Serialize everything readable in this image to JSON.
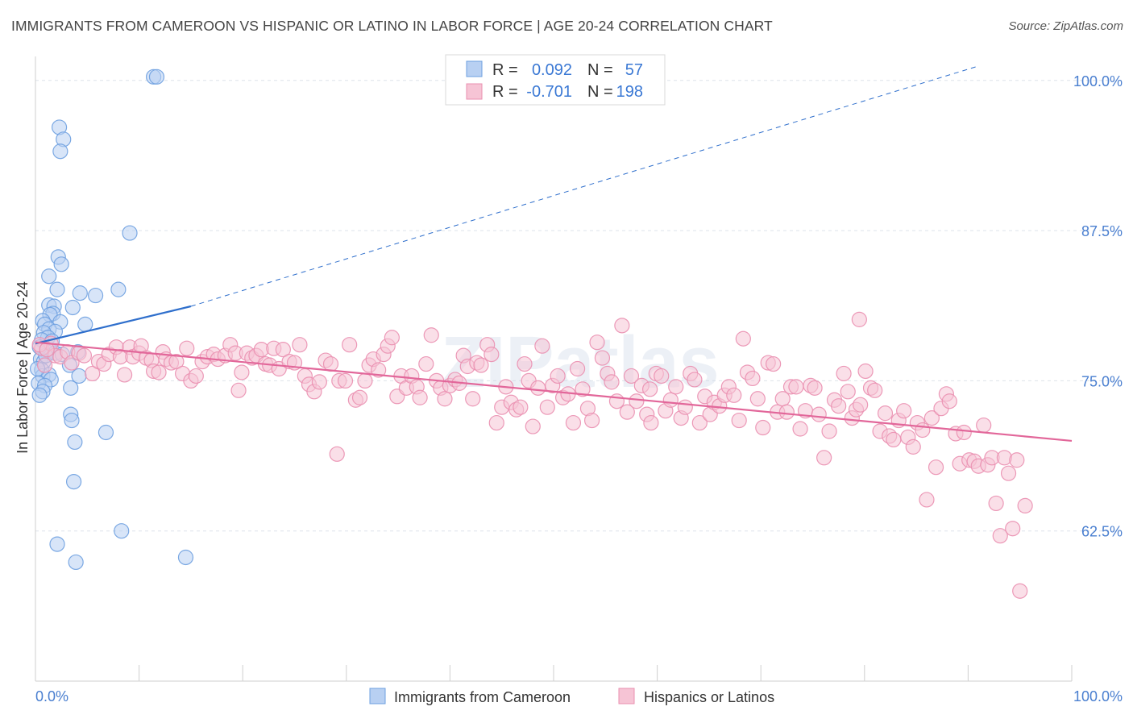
{
  "title": "IMMIGRANTS FROM CAMEROON VS HISPANIC OR LATINO IN LABOR FORCE | AGE 20-24 CORRELATION CHART",
  "source": "Source: ZipAtlas.com",
  "watermark": "ZIPatlas",
  "colors": {
    "blue": "#6ea0e0",
    "blue_fill": "#b8d0f2",
    "blue_line": "#2f6fcc",
    "pink": "#ea8fb0",
    "pink_fill": "#f6c4d5",
    "pink_line": "#e2679a",
    "axis_label": "#4a7fd0",
    "grid": "#dde3ea"
  },
  "legend": {
    "rows": [
      {
        "r_label": "R =",
        "r_value": "0.092",
        "n_label": "N =",
        "n_value": "57"
      },
      {
        "r_label": "R =",
        "r_value": "-0.701",
        "n_label": "N =",
        "n_value": "198"
      }
    ]
  },
  "bottom_legend": [
    "Immigrants from Cameroon",
    "Hispanics or Latinos"
  ],
  "chart_data": {
    "type": "scatter",
    "title": "IMMIGRANTS FROM CAMEROON VS HISPANIC OR LATINO IN LABOR FORCE | AGE 20-24 CORRELATION CHART",
    "xlabel": "",
    "ylabel": "In Labor Force | Age 20-24",
    "xlim": [
      0,
      100
    ],
    "ylim": [
      50,
      102
    ],
    "x_tick_labels": [
      "0.0%",
      "100.0%"
    ],
    "y_ticks": [
      62.5,
      75.0,
      87.5,
      100.0
    ],
    "y_tick_labels": [
      "62.5%",
      "75.0%",
      "87.5%",
      "100.0%"
    ],
    "grid": true,
    "legend_position": "top-center",
    "series": [
      {
        "name": "Immigrants from Cameroon",
        "color": "blue",
        "trend": {
          "x0": 0,
          "y0": 78.1,
          "x1": 15,
          "y1": 81.2,
          "dashed_to_x": 91,
          "dashed_to_y": 101.2
        },
        "points": [
          [
            11.4,
            100.3
          ],
          [
            11.7,
            100.3
          ],
          [
            2.3,
            96.1
          ],
          [
            2.7,
            95.1
          ],
          [
            2.4,
            94.1
          ],
          [
            9.1,
            87.3
          ],
          [
            2.2,
            85.3
          ],
          [
            2.5,
            84.7
          ],
          [
            1.3,
            83.7
          ],
          [
            2.1,
            82.6
          ],
          [
            8.0,
            82.6
          ],
          [
            4.3,
            82.3
          ],
          [
            5.8,
            82.1
          ],
          [
            1.3,
            81.3
          ],
          [
            1.8,
            81.2
          ],
          [
            3.6,
            81.1
          ],
          [
            1.7,
            80.6
          ],
          [
            1.4,
            80.5
          ],
          [
            2.4,
            79.9
          ],
          [
            0.7,
            80.0
          ],
          [
            0.9,
            79.7
          ],
          [
            4.8,
            79.7
          ],
          [
            1.3,
            79.3
          ],
          [
            1.9,
            79.1
          ],
          [
            0.8,
            79.0
          ],
          [
            1.2,
            78.6
          ],
          [
            0.6,
            78.4
          ],
          [
            1.6,
            78.3
          ],
          [
            1.1,
            77.4
          ],
          [
            1.9,
            77.3
          ],
          [
            2.6,
            77.2
          ],
          [
            4.1,
            77.4
          ],
          [
            0.5,
            76.8
          ],
          [
            0.8,
            76.6
          ],
          [
            3.3,
            76.3
          ],
          [
            0.6,
            75.9
          ],
          [
            0.7,
            75.4
          ],
          [
            1.3,
            75.5
          ],
          [
            4.2,
            75.4
          ],
          [
            1.5,
            75.1
          ],
          [
            0.3,
            74.8
          ],
          [
            0.9,
            74.6
          ],
          [
            3.4,
            74.4
          ],
          [
            0.7,
            74.1
          ],
          [
            0.4,
            73.8
          ],
          [
            3.4,
            72.2
          ],
          [
            3.5,
            71.7
          ],
          [
            6.8,
            70.7
          ],
          [
            3.8,
            69.9
          ],
          [
            3.7,
            66.6
          ],
          [
            8.3,
            62.5
          ],
          [
            2.1,
            61.4
          ],
          [
            3.9,
            59.9
          ],
          [
            14.5,
            60.3
          ],
          [
            0.2,
            76.0
          ],
          [
            0.4,
            77.8
          ],
          [
            1.0,
            77.1
          ]
        ]
      },
      {
        "name": "Hispanics or Latinos",
        "color": "pink",
        "trend": {
          "x0": 0,
          "y0": 78.2,
          "x1": 100,
          "y1": 70.0
        },
        "points": [
          [
            0.6,
            77.7
          ],
          [
            0.9,
            76.3
          ],
          [
            1.5,
            78.1
          ],
          [
            1.9,
            77.1
          ],
          [
            2.4,
            77.0
          ],
          [
            3.1,
            77.4
          ],
          [
            3.5,
            76.5
          ],
          [
            4.2,
            77.3
          ],
          [
            4.7,
            77.1
          ],
          [
            5.5,
            75.6
          ],
          [
            6.1,
            76.6
          ],
          [
            6.6,
            76.4
          ],
          [
            7.1,
            77.2
          ],
          [
            7.8,
            77.8
          ],
          [
            8.2,
            77.0
          ],
          [
            8.6,
            75.5
          ],
          [
            9.1,
            77.8
          ],
          [
            9.4,
            77.0
          ],
          [
            10.0,
            77.3
          ],
          [
            10.2,
            77.9
          ],
          [
            10.7,
            76.9
          ],
          [
            11.2,
            76.7
          ],
          [
            11.4,
            75.8
          ],
          [
            11.9,
            75.7
          ],
          [
            12.3,
            77.4
          ],
          [
            12.6,
            76.8
          ],
          [
            13.1,
            76.5
          ],
          [
            13.6,
            76.6
          ],
          [
            14.2,
            75.6
          ],
          [
            14.6,
            77.7
          ],
          [
            15.0,
            75.0
          ],
          [
            15.5,
            75.4
          ],
          [
            16.1,
            76.6
          ],
          [
            16.6,
            77.0
          ],
          [
            17.2,
            77.2
          ],
          [
            17.6,
            76.8
          ],
          [
            18.3,
            77.1
          ],
          [
            18.8,
            78.0
          ],
          [
            19.3,
            77.3
          ],
          [
            19.6,
            74.2
          ],
          [
            19.9,
            75.7
          ],
          [
            20.4,
            77.3
          ],
          [
            20.9,
            76.9
          ],
          [
            21.3,
            77.1
          ],
          [
            21.8,
            77.6
          ],
          [
            22.2,
            76.4
          ],
          [
            22.6,
            76.3
          ],
          [
            23.0,
            77.7
          ],
          [
            23.5,
            76.0
          ],
          [
            23.9,
            77.6
          ],
          [
            24.5,
            76.6
          ],
          [
            25.0,
            76.5
          ],
          [
            25.5,
            78.0
          ],
          [
            26.0,
            75.4
          ],
          [
            26.4,
            74.7
          ],
          [
            26.9,
            74.1
          ],
          [
            27.4,
            74.9
          ],
          [
            28.0,
            76.7
          ],
          [
            28.5,
            76.4
          ],
          [
            29.3,
            75.0
          ],
          [
            29.9,
            75.0
          ],
          [
            30.3,
            78.0
          ],
          [
            30.9,
            73.4
          ],
          [
            31.3,
            73.6
          ],
          [
            31.8,
            75.0
          ],
          [
            32.2,
            76.3
          ],
          [
            32.6,
            76.8
          ],
          [
            33.1,
            75.9
          ],
          [
            33.6,
            77.2
          ],
          [
            34.0,
            77.9
          ],
          [
            34.4,
            78.6
          ],
          [
            34.9,
            73.7
          ],
          [
            35.3,
            75.4
          ],
          [
            35.8,
            74.4
          ],
          [
            36.3,
            75.4
          ],
          [
            36.8,
            74.5
          ],
          [
            37.1,
            73.6
          ],
          [
            37.7,
            76.4
          ],
          [
            38.2,
            78.8
          ],
          [
            38.7,
            75.0
          ],
          [
            39.1,
            74.4
          ],
          [
            39.5,
            73.5
          ],
          [
            40.0,
            74.6
          ],
          [
            40.5,
            75.1
          ],
          [
            40.9,
            74.8
          ],
          [
            41.3,
            77.1
          ],
          [
            41.7,
            76.2
          ],
          [
            42.2,
            73.5
          ],
          [
            42.6,
            76.5
          ],
          [
            43.0,
            76.3
          ],
          [
            43.6,
            78.0
          ],
          [
            44.0,
            77.2
          ],
          [
            44.5,
            71.5
          ],
          [
            45.0,
            72.8
          ],
          [
            45.4,
            74.5
          ],
          [
            45.9,
            73.2
          ],
          [
            46.4,
            72.6
          ],
          [
            46.8,
            72.8
          ],
          [
            47.2,
            76.4
          ],
          [
            47.6,
            75.0
          ],
          [
            48.0,
            71.2
          ],
          [
            48.5,
            74.4
          ],
          [
            48.9,
            77.9
          ],
          [
            49.4,
            72.8
          ],
          [
            49.9,
            74.6
          ],
          [
            50.4,
            75.4
          ],
          [
            50.9,
            73.6
          ],
          [
            51.4,
            73.9
          ],
          [
            51.9,
            71.5
          ],
          [
            52.3,
            76.0
          ],
          [
            52.8,
            74.3
          ],
          [
            53.3,
            72.7
          ],
          [
            53.7,
            71.7
          ],
          [
            54.2,
            78.2
          ],
          [
            54.7,
            76.9
          ],
          [
            55.2,
            75.6
          ],
          [
            55.6,
            74.9
          ],
          [
            56.1,
            73.3
          ],
          [
            56.6,
            79.6
          ],
          [
            57.1,
            72.4
          ],
          [
            57.5,
            75.4
          ],
          [
            58.0,
            73.3
          ],
          [
            58.5,
            74.6
          ],
          [
            59.0,
            72.2
          ],
          [
            59.4,
            71.5
          ],
          [
            59.9,
            75.6
          ],
          [
            60.4,
            75.4
          ],
          [
            60.8,
            72.5
          ],
          [
            61.3,
            73.4
          ],
          [
            61.8,
            74.5
          ],
          [
            62.3,
            71.9
          ],
          [
            62.7,
            72.8
          ],
          [
            63.2,
            75.6
          ],
          [
            63.6,
            75.1
          ],
          [
            64.1,
            71.5
          ],
          [
            64.6,
            73.7
          ],
          [
            65.1,
            72.2
          ],
          [
            65.5,
            73.2
          ],
          [
            66.0,
            72.9
          ],
          [
            66.5,
            73.8
          ],
          [
            66.9,
            74.5
          ],
          [
            67.4,
            73.8
          ],
          [
            67.9,
            71.7
          ],
          [
            68.3,
            78.5
          ],
          [
            68.7,
            75.7
          ],
          [
            69.2,
            75.2
          ],
          [
            69.7,
            73.5
          ],
          [
            70.2,
            71.1
          ],
          [
            70.7,
            76.5
          ],
          [
            71.2,
            76.4
          ],
          [
            71.6,
            72.4
          ],
          [
            72.1,
            73.5
          ],
          [
            72.5,
            72.4
          ],
          [
            72.9,
            74.5
          ],
          [
            73.4,
            74.5
          ],
          [
            73.8,
            71.0
          ],
          [
            74.3,
            72.5
          ],
          [
            74.8,
            74.6
          ],
          [
            75.2,
            74.4
          ],
          [
            75.6,
            72.2
          ],
          [
            76.1,
            68.6
          ],
          [
            76.6,
            70.8
          ],
          [
            77.1,
            73.4
          ],
          [
            77.5,
            72.9
          ],
          [
            78.0,
            75.6
          ],
          [
            78.4,
            74.1
          ],
          [
            78.8,
            71.9
          ],
          [
            79.2,
            72.6
          ],
          [
            79.6,
            73.0
          ],
          [
            80.1,
            75.8
          ],
          [
            80.6,
            74.4
          ],
          [
            81.0,
            74.2
          ],
          [
            81.5,
            70.8
          ],
          [
            82.0,
            72.3
          ],
          [
            82.4,
            70.4
          ],
          [
            82.8,
            70.1
          ],
          [
            83.3,
            71.7
          ],
          [
            83.8,
            72.5
          ],
          [
            84.2,
            70.3
          ],
          [
            84.7,
            69.5
          ],
          [
            85.1,
            71.5
          ],
          [
            85.6,
            70.9
          ],
          [
            86.0,
            65.1
          ],
          [
            86.5,
            71.9
          ],
          [
            86.9,
            67.8
          ],
          [
            87.4,
            72.7
          ],
          [
            87.9,
            73.9
          ],
          [
            88.2,
            73.3
          ],
          [
            88.8,
            70.6
          ],
          [
            89.2,
            68.1
          ],
          [
            89.6,
            70.7
          ],
          [
            90.1,
            68.4
          ],
          [
            90.6,
            68.3
          ],
          [
            91.0,
            67.9
          ],
          [
            91.5,
            71.3
          ],
          [
            91.9,
            68.0
          ],
          [
            92.3,
            68.6
          ],
          [
            92.7,
            64.8
          ],
          [
            93.1,
            62.1
          ],
          [
            93.5,
            68.6
          ],
          [
            93.9,
            67.3
          ],
          [
            94.3,
            62.7
          ],
          [
            94.7,
            68.4
          ],
          [
            95.5,
            64.6
          ],
          [
            95.0,
            57.5
          ],
          [
            79.5,
            80.1
          ],
          [
            59.3,
            74.3
          ],
          [
            29.1,
            68.9
          ],
          [
            0.4,
            78.0
          ],
          [
            1.1,
            77.6
          ]
        ]
      }
    ]
  }
}
